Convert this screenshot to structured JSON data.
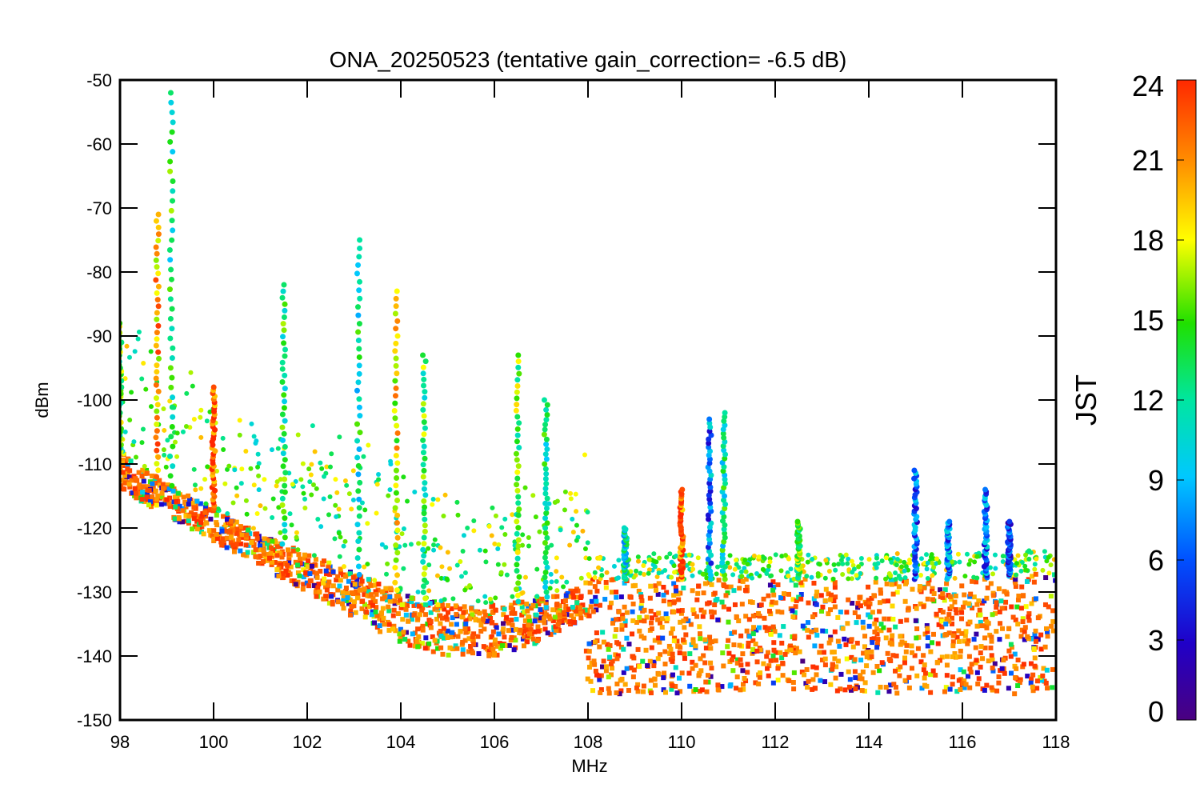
{
  "chart_data": {
    "type": "scatter",
    "title": "ONA_20250523 (tentative gain_correction= -6.5 dB)",
    "xlabel": "MHz",
    "ylabel": "dBm",
    "xlim": [
      98,
      118
    ],
    "ylim": [
      -150,
      -50
    ],
    "xticks": [
      98,
      100,
      102,
      104,
      106,
      108,
      110,
      112,
      114,
      116,
      118
    ],
    "yticks": [
      -50,
      -60,
      -70,
      -80,
      -90,
      -100,
      -110,
      -120,
      -130,
      -140,
      -150
    ],
    "grid": false,
    "marker": "asterisk",
    "colorbar": {
      "label": "JST",
      "min": 0,
      "max": 24,
      "ticks": [
        0,
        3,
        6,
        9,
        12,
        15,
        18,
        21,
        24
      ],
      "colormap": "rainbow"
    },
    "noise_floor": {
      "description": "lower envelope of the dense cloud of points",
      "x": [
        98,
        99,
        100,
        101,
        102,
        103,
        104,
        105,
        106,
        107,
        107.9,
        108,
        110,
        112,
        114,
        116,
        118
      ],
      "y": [
        -114,
        -118,
        -122,
        -126,
        -130,
        -134,
        -138,
        -140,
        -140,
        -138,
        -134,
        -146,
        -146,
        -145,
        -146,
        -146,
        -146
      ]
    },
    "band_top": {
      "x": [
        98,
        99,
        100,
        101,
        102,
        103,
        104,
        105,
        106,
        107,
        107.9,
        108,
        110,
        112,
        114,
        116,
        118
      ],
      "y": [
        -108,
        -113,
        -117,
        -121,
        -124,
        -127,
        -130,
        -132,
        -132,
        -131,
        -129,
        -128,
        -128,
        -128,
        -128,
        -128,
        -127
      ]
    },
    "peaks": [
      {
        "x": 98.0,
        "y": -88,
        "jst": 15
      },
      {
        "x": 98.8,
        "y": -71,
        "jst": 20
      },
      {
        "x": 99.1,
        "y": -52,
        "jst": 13
      },
      {
        "x": 100.0,
        "y": -98,
        "jst": 23
      },
      {
        "x": 101.5,
        "y": -82,
        "jst": 13
      },
      {
        "x": 103.1,
        "y": -75,
        "jst": 12
      },
      {
        "x": 103.9,
        "y": -83,
        "jst": 18
      },
      {
        "x": 104.5,
        "y": -93,
        "jst": 14
      },
      {
        "x": 106.5,
        "y": -93,
        "jst": 15
      },
      {
        "x": 107.1,
        "y": -100,
        "jst": 12
      },
      {
        "x": 108.8,
        "y": -120,
        "jst": 11
      },
      {
        "x": 110.0,
        "y": -114,
        "jst": 23
      },
      {
        "x": 110.6,
        "y": -103,
        "jst": 7
      },
      {
        "x": 110.9,
        "y": -102,
        "jst": 12
      },
      {
        "x": 112.5,
        "y": -119,
        "jst": 15
      },
      {
        "x": 115.0,
        "y": -111,
        "jst": 6
      },
      {
        "x": 115.7,
        "y": -119,
        "jst": 7
      },
      {
        "x": 116.5,
        "y": -114,
        "jst": 7
      },
      {
        "x": 117.0,
        "y": -119,
        "jst": 5
      }
    ]
  }
}
